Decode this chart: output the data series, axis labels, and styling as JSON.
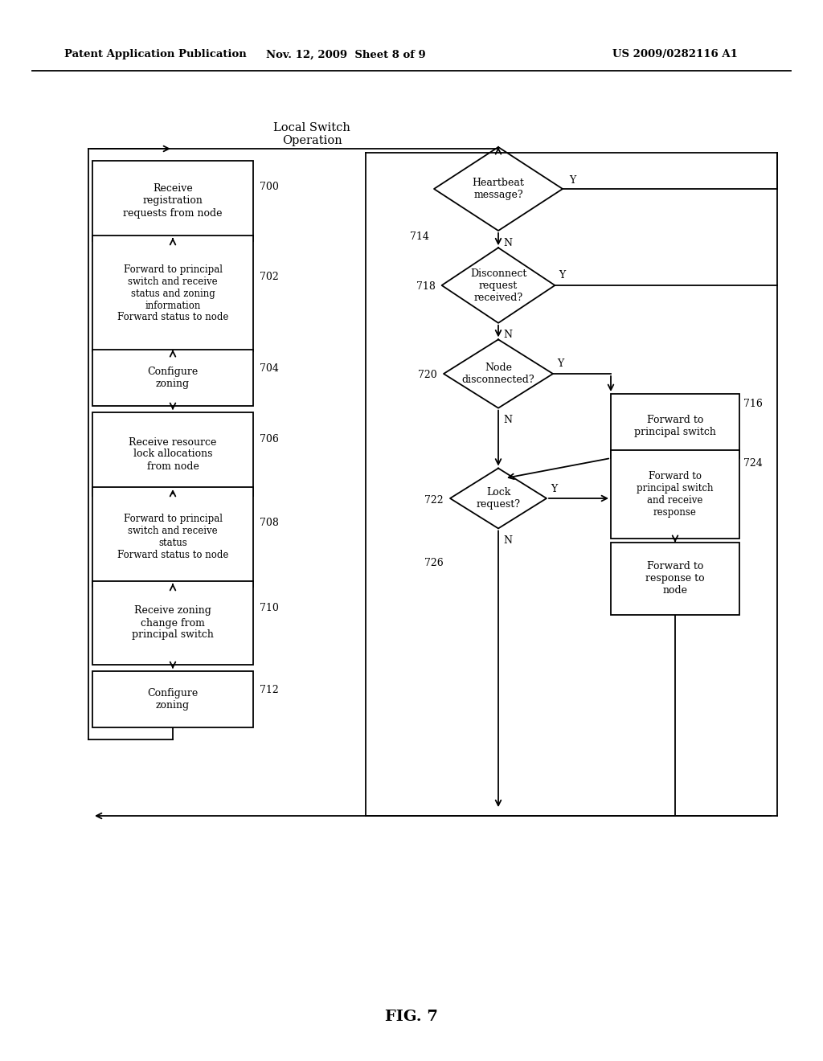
{
  "header_left": "Patent Application Publication",
  "header_mid": "Nov. 12, 2009  Sheet 8 of 9",
  "header_right": "US 2009/0282116 A1",
  "title": "Local Switch\nOperation",
  "figure_label": "FIG. 7",
  "bg_color": "#ffffff"
}
